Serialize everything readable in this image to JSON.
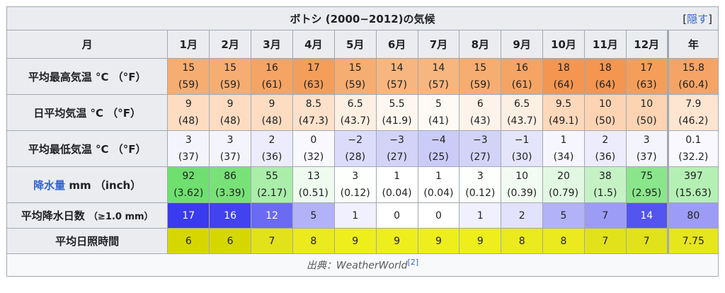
{
  "title": "ボトシ (2000−2012)の気候",
  "hide_label": "隠す",
  "header": {
    "row_label": "月",
    "months": [
      "1月",
      "2月",
      "3月",
      "4月",
      "5月",
      "6月",
      "7月",
      "8月",
      "9月",
      "10月",
      "11月",
      "12月"
    ],
    "year": "年"
  },
  "rows": [
    {
      "label": "平均最高気温 °C （°F）",
      "cells": [
        {
          "v": "15",
          "s": "(59)",
          "bg": "#f6ad71"
        },
        {
          "v": "15",
          "s": "(59)",
          "bg": "#f6ad71"
        },
        {
          "v": "16",
          "s": "(61)",
          "bg": "#f5a464"
        },
        {
          "v": "17",
          "s": "(63)",
          "bg": "#f59e5a"
        },
        {
          "v": "15",
          "s": "(59)",
          "bg": "#f6ad71"
        },
        {
          "v": "14",
          "s": "(57)",
          "bg": "#f7b67f"
        },
        {
          "v": "14",
          "s": "(57)",
          "bg": "#f7b67f"
        },
        {
          "v": "15",
          "s": "(59)",
          "bg": "#f6ad71"
        },
        {
          "v": "16",
          "s": "(61)",
          "bg": "#f5a464"
        },
        {
          "v": "18",
          "s": "(64)",
          "bg": "#f49650"
        },
        {
          "v": "18",
          "s": "(64)",
          "bg": "#f49650"
        },
        {
          "v": "17",
          "s": "(63)",
          "bg": "#f59e5a"
        }
      ],
      "year": {
        "v": "15.8",
        "s": "(60.4)",
        "bg": "#f5a466"
      }
    },
    {
      "label": "日平均気温 °C （°F）",
      "cells": [
        {
          "v": "9",
          "s": "(48)",
          "bg": "#fddcc2"
        },
        {
          "v": "9",
          "s": "(48)",
          "bg": "#fddcc2"
        },
        {
          "v": "9",
          "s": "(48)",
          "bg": "#fddcc2"
        },
        {
          "v": "8.5",
          "s": "(47.3)",
          "bg": "#fde1ca"
        },
        {
          "v": "6.5",
          "s": "(43.7)",
          "bg": "#feefe3"
        },
        {
          "v": "5.5",
          "s": "(41.9)",
          "bg": "#fff6ef"
        },
        {
          "v": "5",
          "s": "(41)",
          "bg": "#fffaf6"
        },
        {
          "v": "6",
          "s": "(43)",
          "bg": "#fef3ea"
        },
        {
          "v": "6.5",
          "s": "(43.7)",
          "bg": "#feefe3"
        },
        {
          "v": "9.5",
          "s": "(49.1)",
          "bg": "#fdd8bb"
        },
        {
          "v": "10",
          "s": "(50)",
          "bg": "#fcd4b4"
        },
        {
          "v": "10",
          "s": "(50)",
          "bg": "#fcd4b4"
        }
      ],
      "year": {
        "v": "7.9",
        "s": "(46.2)",
        "bg": "#fde5d1"
      }
    },
    {
      "label": "平均最低気温 °C （°F）",
      "cells": [
        {
          "v": "3",
          "s": "(37)",
          "bg": "#f4f4fd"
        },
        {
          "v": "3",
          "s": "(37)",
          "bg": "#f4f4fd"
        },
        {
          "v": "2",
          "s": "(36)",
          "bg": "#ececfc"
        },
        {
          "v": "0",
          "s": "(32)",
          "bg": "#f8f8fe"
        },
        {
          "v": "−2",
          "s": "(28)",
          "bg": "#dcdcfa"
        },
        {
          "v": "−3",
          "s": "(27)",
          "bg": "#d3d3f8"
        },
        {
          "v": "−4",
          "s": "(25)",
          "bg": "#cbcbf7"
        },
        {
          "v": "−3",
          "s": "(27)",
          "bg": "#d3d3f8"
        },
        {
          "v": "−1",
          "s": "(30)",
          "bg": "#e4e4fb"
        },
        {
          "v": "1",
          "s": "(34)",
          "bg": "#f6f6fe"
        },
        {
          "v": "2",
          "s": "(36)",
          "bg": "#ececfc"
        },
        {
          "v": "3",
          "s": "(37)",
          "bg": "#f4f4fd"
        }
      ],
      "year": {
        "v": "0.1",
        "s": "(32.2)",
        "bg": "#f8f8fe"
      }
    },
    {
      "label_link": "降水量",
      "label_rest": " mm （inch）",
      "cells": [
        {
          "v": "92",
          "s": "(3.62)",
          "bg": "#6fe06f"
        },
        {
          "v": "86",
          "s": "(3.39)",
          "bg": "#78e278"
        },
        {
          "v": "55",
          "s": "(2.17)",
          "bg": "#aaeeaa"
        },
        {
          "v": "13",
          "s": "(0.51)",
          "bg": "#eefbee"
        },
        {
          "v": "3",
          "s": "(0.12)",
          "bg": "#fcfffc"
        },
        {
          "v": "1",
          "s": "(0.04)",
          "bg": "#ffffff"
        },
        {
          "v": "1",
          "s": "(0.04)",
          "bg": "#ffffff"
        },
        {
          "v": "3",
          "s": "(0.12)",
          "bg": "#fcfffc"
        },
        {
          "v": "10",
          "s": "(0.39)",
          "bg": "#f2fcf2"
        },
        {
          "v": "20",
          "s": "(0.79)",
          "bg": "#e3f8e3"
        },
        {
          "v": "38",
          "s": "(1.5)",
          "bg": "#c5f2c5"
        },
        {
          "v": "75",
          "s": "(2.95)",
          "bg": "#8ae68a"
        }
      ],
      "year": {
        "v": "397",
        "s": "(15.63)",
        "bg": "#b4f0b4"
      }
    },
    {
      "label": "平均降水日数",
      "label_small": "（≥1.0 mm）",
      "cells": [
        {
          "v": "17",
          "bg": "#3a3aee",
          "fg": "#ffffff"
        },
        {
          "v": "16",
          "bg": "#4242ef",
          "fg": "#ffffff"
        },
        {
          "v": "12",
          "bg": "#6a6af2",
          "fg": "#ffffff"
        },
        {
          "v": "5",
          "bg": "#b2b2f8"
        },
        {
          "v": "1",
          "bg": "#f0f0fe"
        },
        {
          "v": "0",
          "bg": "#ffffff"
        },
        {
          "v": "0",
          "bg": "#ffffff"
        },
        {
          "v": "1",
          "bg": "#f0f0fe"
        },
        {
          "v": "2",
          "bg": "#e2e2fc"
        },
        {
          "v": "5",
          "bg": "#b2b2f8"
        },
        {
          "v": "7",
          "bg": "#9c9cf6"
        },
        {
          "v": "14",
          "bg": "#5454f0",
          "fg": "#ffffff"
        }
      ],
      "year": {
        "v": "80",
        "bg": "#9c9cf6"
      }
    },
    {
      "label": "平均日照時間",
      "cells": [
        {
          "v": "6",
          "bg": "#d7d700"
        },
        {
          "v": "6",
          "bg": "#d7d700"
        },
        {
          "v": "7",
          "bg": "#e2e21a"
        },
        {
          "v": "8",
          "bg": "#eaea1e"
        },
        {
          "v": "9",
          "bg": "#eeee1c"
        },
        {
          "v": "9",
          "bg": "#eeee1c"
        },
        {
          "v": "9",
          "bg": "#eeee1c"
        },
        {
          "v": "9",
          "bg": "#eeee1c"
        },
        {
          "v": "8",
          "bg": "#eaea1e"
        },
        {
          "v": "8",
          "bg": "#eaea1e"
        },
        {
          "v": "7",
          "bg": "#e2e21a"
        },
        {
          "v": "7",
          "bg": "#e2e21a"
        }
      ],
      "year": {
        "v": "7.75",
        "bg": "#e6e61c"
      }
    }
  ],
  "source": {
    "prefix": "出典：",
    "name": "WeatherWorld",
    "ref": "[2]"
  }
}
